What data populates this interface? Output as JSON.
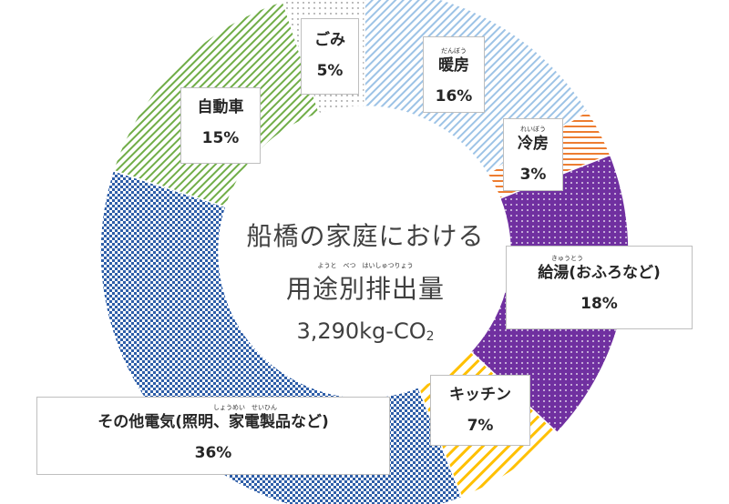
{
  "chart_data": {
    "type": "donut",
    "title_line1": "船橋の家庭における",
    "title_line2": "用途別排出量",
    "title_line2_ruby": "ようと　べつ　はいしゅつりょう",
    "total": "3,290kg-CO",
    "total_sub": "2",
    "categories": [
      "暖房",
      "冷房",
      "給湯(おふろなど)",
      "キッチン",
      "その他電気(照明、家電製品など)",
      "自動車",
      "ごみ"
    ],
    "values": [
      16,
      3,
      18,
      7,
      36,
      15,
      5
    ],
    "value_labels": [
      "16%",
      "3%",
      "18%",
      "7%",
      "36%",
      "15%",
      "5%"
    ],
    "ruby": [
      "だんぼう",
      "れいぼう",
      "きゅうとう",
      "",
      "しょうめい　せいひん",
      "",
      ""
    ],
    "colors": [
      "#9dc3e6",
      "#ed7d31",
      "#7030a0",
      "#ffc000",
      "#2e5ea8",
      "#70ad47",
      "#595959"
    ],
    "patterns": [
      "diag-light",
      "horizontal",
      "dots",
      "diag-wide",
      "checker",
      "diag",
      "dotted"
    ]
  }
}
